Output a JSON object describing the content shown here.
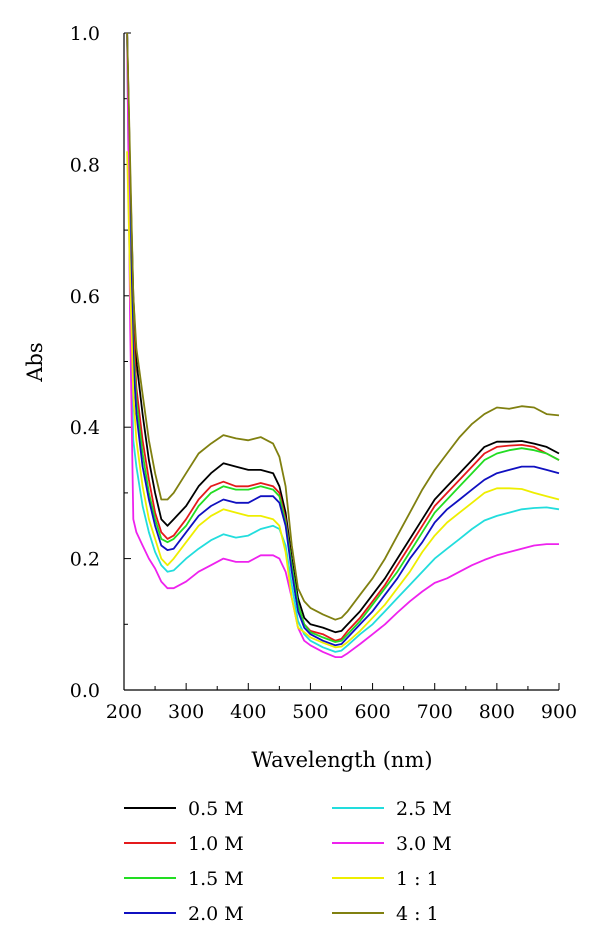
{
  "chart_data": {
    "type": "line",
    "title": "",
    "xlabel": "Wavelength (nm)",
    "ylabel": "Abs",
    "xlim": [
      200,
      900
    ],
    "ylim": [
      0.0,
      1.0
    ],
    "xticks": [
      "200",
      "300",
      "400",
      "500",
      "600",
      "700",
      "800",
      "900"
    ],
    "yticks": [
      "0.0",
      "0.2",
      "0.4",
      "0.6",
      "0.8",
      "1.0"
    ],
    "grid": false,
    "legend_position": "bottom",
    "x": [
      205,
      210,
      215,
      220,
      230,
      240,
      250,
      260,
      270,
      280,
      300,
      320,
      340,
      360,
      380,
      400,
      420,
      440,
      450,
      460,
      470,
      480,
      490,
      500,
      520,
      540,
      550,
      560,
      580,
      600,
      620,
      640,
      660,
      680,
      700,
      720,
      740,
      760,
      780,
      800,
      820,
      840,
      860,
      880,
      900
    ],
    "series": [
      {
        "name": "0.5 M",
        "color": "#000000",
        "values": [
          1.0,
          0.78,
          0.6,
          0.5,
          0.42,
          0.35,
          0.3,
          0.26,
          0.25,
          0.26,
          0.28,
          0.31,
          0.33,
          0.345,
          0.34,
          0.335,
          0.335,
          0.33,
          0.31,
          0.27,
          0.2,
          0.14,
          0.11,
          0.1,
          0.095,
          0.088,
          0.09,
          0.1,
          0.12,
          0.145,
          0.17,
          0.2,
          0.23,
          0.26,
          0.29,
          0.31,
          0.33,
          0.35,
          0.37,
          0.378,
          0.378,
          0.379,
          0.375,
          0.37,
          0.36
        ]
      },
      {
        "name": "1.0 M",
        "color": "#e41a1c",
        "values": [
          1.0,
          0.75,
          0.55,
          0.46,
          0.38,
          0.32,
          0.27,
          0.24,
          0.23,
          0.235,
          0.26,
          0.29,
          0.31,
          0.317,
          0.31,
          0.31,
          0.315,
          0.31,
          0.3,
          0.26,
          0.19,
          0.13,
          0.1,
          0.09,
          0.085,
          0.075,
          0.078,
          0.09,
          0.11,
          0.135,
          0.16,
          0.19,
          0.22,
          0.25,
          0.28,
          0.3,
          0.32,
          0.34,
          0.36,
          0.37,
          0.372,
          0.373,
          0.37,
          0.36,
          0.35
        ]
      },
      {
        "name": "1.5 M",
        "color": "#22dd22",
        "values": [
          1.0,
          0.72,
          0.52,
          0.44,
          0.36,
          0.3,
          0.26,
          0.23,
          0.225,
          0.23,
          0.25,
          0.28,
          0.3,
          0.31,
          0.305,
          0.305,
          0.31,
          0.305,
          0.295,
          0.255,
          0.19,
          0.13,
          0.1,
          0.088,
          0.08,
          0.073,
          0.075,
          0.085,
          0.105,
          0.13,
          0.155,
          0.18,
          0.21,
          0.24,
          0.27,
          0.29,
          0.31,
          0.33,
          0.35,
          0.36,
          0.365,
          0.368,
          0.365,
          0.36,
          0.35
        ]
      },
      {
        "name": "2.0 M",
        "color": "#1010c0",
        "values": [
          1.0,
          0.7,
          0.5,
          0.42,
          0.34,
          0.29,
          0.25,
          0.22,
          0.213,
          0.215,
          0.24,
          0.265,
          0.28,
          0.29,
          0.285,
          0.285,
          0.295,
          0.295,
          0.285,
          0.25,
          0.18,
          0.12,
          0.095,
          0.085,
          0.075,
          0.068,
          0.07,
          0.08,
          0.1,
          0.12,
          0.145,
          0.17,
          0.2,
          0.225,
          0.255,
          0.275,
          0.29,
          0.305,
          0.32,
          0.33,
          0.335,
          0.34,
          0.34,
          0.335,
          0.33
        ]
      },
      {
        "name": "2.5 M",
        "color": "#22dddd",
        "values": [
          1.0,
          0.58,
          0.38,
          0.34,
          0.28,
          0.24,
          0.21,
          0.19,
          0.18,
          0.182,
          0.2,
          0.215,
          0.228,
          0.237,
          0.232,
          0.235,
          0.245,
          0.25,
          0.245,
          0.22,
          0.16,
          0.105,
          0.085,
          0.075,
          0.065,
          0.058,
          0.06,
          0.068,
          0.085,
          0.1,
          0.12,
          0.14,
          0.16,
          0.18,
          0.2,
          0.215,
          0.23,
          0.245,
          0.258,
          0.265,
          0.27,
          0.275,
          0.277,
          0.278,
          0.275
        ]
      },
      {
        "name": "3.0 M",
        "color": "#ee22ee",
        "values": [
          1.0,
          0.55,
          0.26,
          0.24,
          0.22,
          0.2,
          0.185,
          0.165,
          0.155,
          0.155,
          0.165,
          0.18,
          0.19,
          0.2,
          0.195,
          0.195,
          0.205,
          0.205,
          0.2,
          0.18,
          0.14,
          0.095,
          0.075,
          0.068,
          0.058,
          0.05,
          0.05,
          0.056,
          0.07,
          0.085,
          0.1,
          0.118,
          0.135,
          0.15,
          0.163,
          0.17,
          0.18,
          0.19,
          0.198,
          0.205,
          0.21,
          0.215,
          0.22,
          0.222,
          0.222
        ]
      },
      {
        "name": "1 : 1",
        "color": "#eeee00",
        "values": [
          0.82,
          0.62,
          0.45,
          0.38,
          0.31,
          0.26,
          0.23,
          0.2,
          0.19,
          0.2,
          0.225,
          0.25,
          0.265,
          0.275,
          0.27,
          0.265,
          0.265,
          0.26,
          0.25,
          0.21,
          0.14,
          0.095,
          0.088,
          0.08,
          0.072,
          0.065,
          0.066,
          0.073,
          0.09,
          0.11,
          0.13,
          0.155,
          0.18,
          0.21,
          0.235,
          0.255,
          0.27,
          0.285,
          0.3,
          0.307,
          0.307,
          0.306,
          0.3,
          0.295,
          0.29
        ]
      },
      {
        "name": "4 : 1",
        "color": "#808010",
        "values": [
          1.0,
          0.8,
          0.6,
          0.52,
          0.45,
          0.38,
          0.33,
          0.29,
          0.29,
          0.3,
          0.33,
          0.36,
          0.375,
          0.388,
          0.383,
          0.38,
          0.385,
          0.375,
          0.355,
          0.31,
          0.22,
          0.155,
          0.135,
          0.125,
          0.115,
          0.107,
          0.11,
          0.12,
          0.145,
          0.17,
          0.2,
          0.235,
          0.27,
          0.305,
          0.335,
          0.36,
          0.385,
          0.405,
          0.42,
          0.43,
          0.428,
          0.432,
          0.43,
          0.42,
          0.418
        ]
      }
    ]
  }
}
